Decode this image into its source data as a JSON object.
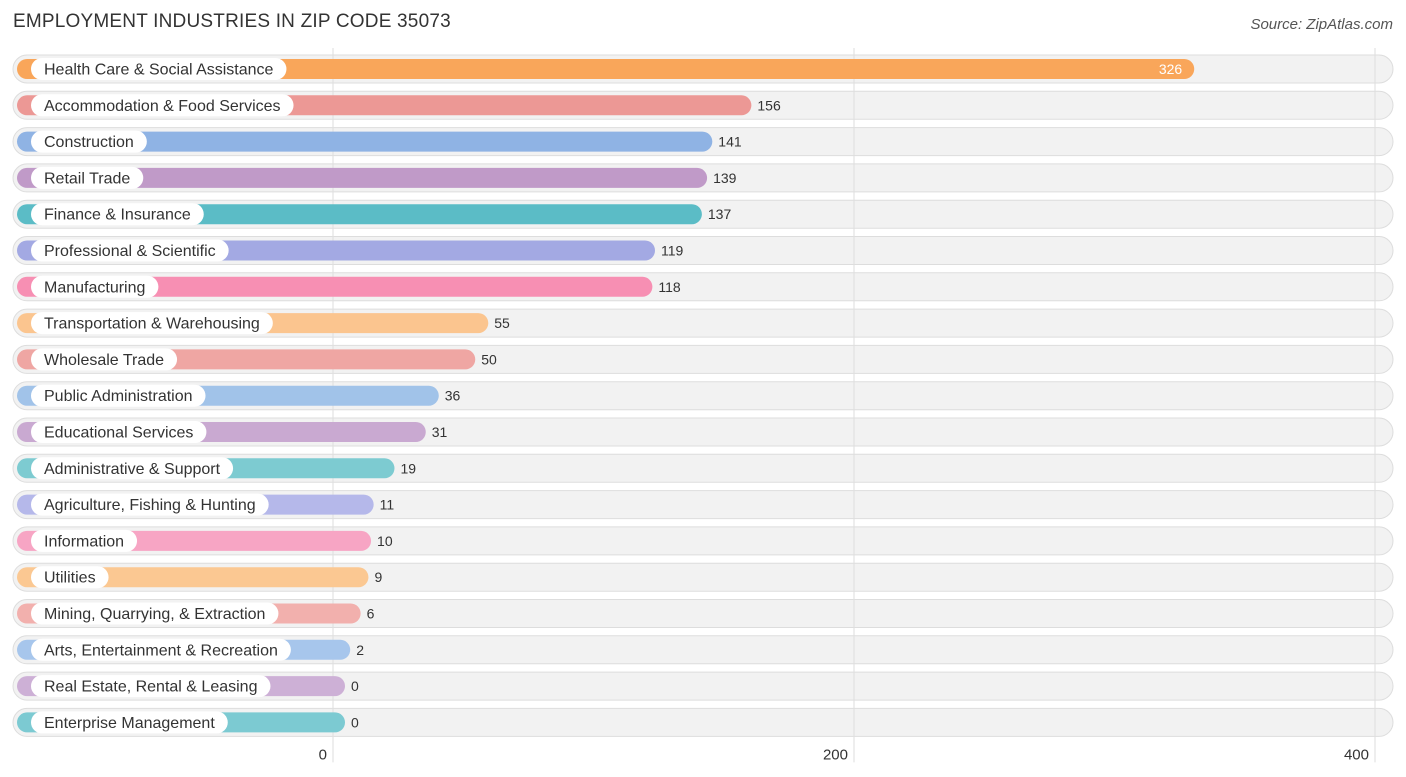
{
  "header": {
    "title": "EMPLOYMENT INDUSTRIES IN ZIP CODE 35073",
    "source": "Source: ZipAtlas.com"
  },
  "chart_data": {
    "type": "bar",
    "orientation": "horizontal",
    "title": "EMPLOYMENT INDUSTRIES IN ZIP CODE 35073",
    "xlabel": "",
    "ylabel": "",
    "xlim": [
      0,
      400
    ],
    "xticks": [
      0,
      200,
      400
    ],
    "grid": true,
    "categories": [
      "Health Care & Social Assistance",
      "Accommodation & Food Services",
      "Construction",
      "Retail Trade",
      "Finance & Insurance",
      "Professional & Scientific",
      "Manufacturing",
      "Transportation & Warehousing",
      "Wholesale Trade",
      "Public Administration",
      "Educational Services",
      "Administrative & Support",
      "Agriculture, Fishing & Hunting",
      "Information",
      "Utilities",
      "Mining, Quarrying, & Extraction",
      "Arts, Entertainment & Recreation",
      "Real Estate, Rental & Leasing",
      "Enterprise Management"
    ],
    "values": [
      326,
      156,
      141,
      139,
      137,
      119,
      118,
      55,
      50,
      36,
      31,
      19,
      11,
      10,
      9,
      6,
      2,
      0,
      0
    ],
    "colors": [
      "#f9a65a",
      "#ec9895",
      "#8fb3e4",
      "#c09ac8",
      "#5bbcc6",
      "#a3a9e3",
      "#f78fb3",
      "#fbc58f",
      "#efa6a3",
      "#a1c3e9",
      "#c9a9d1",
      "#7dcbd1",
      "#b5b8ea",
      "#f7a5c4",
      "#fbc892",
      "#f2b0ad",
      "#a7c6ec",
      "#cdb0d6",
      "#7ccad2"
    ]
  }
}
